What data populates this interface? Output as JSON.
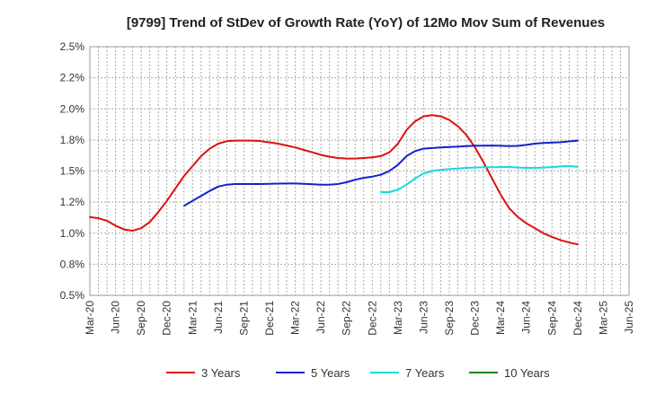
{
  "chart_data": {
    "type": "line",
    "title": "[9799]  Trend of StDev of Growth Rate (YoY) of 12Mo Mov Sum of Revenues",
    "xlabel": "",
    "ylabel": "",
    "grid": true,
    "ylim": [
      0.5,
      2.5
    ],
    "y_ticks": [
      0.5,
      0.75,
      1.0,
      1.25,
      1.5,
      1.75,
      2.0,
      2.25,
      2.5
    ],
    "y_tick_labels": [
      "0.5%",
      "0.8%",
      "1.0%",
      "1.2%",
      "1.5%",
      "1.8%",
      "2.0%",
      "2.2%",
      "2.5%"
    ],
    "x_tick_labels": [
      "Mar-20",
      "Jun-20",
      "Sep-20",
      "Dec-20",
      "Mar-21",
      "Jun-21",
      "Sep-21",
      "Dec-21",
      "Mar-22",
      "Jun-22",
      "Sep-22",
      "Dec-22",
      "Mar-23",
      "Jun-23",
      "Sep-23",
      "Dec-23",
      "Mar-24",
      "Jun-24",
      "Sep-24",
      "Dec-24",
      "Mar-25",
      "Jun-25"
    ],
    "legend_position": "bottom",
    "series": [
      {
        "name": "3 Years",
        "color": "#dd1111",
        "points": [
          [
            0,
            1.13
          ],
          [
            1,
            1.12
          ],
          [
            2,
            1.1
          ],
          [
            3,
            1.06
          ],
          [
            4,
            1.03
          ],
          [
            5,
            1.02
          ],
          [
            6,
            1.04
          ],
          [
            7,
            1.09
          ],
          [
            8,
            1.17
          ],
          [
            9,
            1.26
          ],
          [
            10,
            1.36
          ],
          [
            11,
            1.46
          ],
          [
            12,
            1.54
          ],
          [
            13,
            1.62
          ],
          [
            14,
            1.68
          ],
          [
            15,
            1.72
          ],
          [
            16,
            1.74
          ],
          [
            17,
            1.745
          ],
          [
            18,
            1.745
          ],
          [
            19,
            1.745
          ],
          [
            20,
            1.74
          ],
          [
            21,
            1.73
          ],
          [
            22,
            1.72
          ],
          [
            23,
            1.705
          ],
          [
            24,
            1.69
          ],
          [
            25,
            1.67
          ],
          [
            26,
            1.65
          ],
          [
            27,
            1.63
          ],
          [
            28,
            1.615
          ],
          [
            29,
            1.605
          ],
          [
            30,
            1.6
          ],
          [
            31,
            1.6
          ],
          [
            32,
            1.605
          ],
          [
            33,
            1.61
          ],
          [
            34,
            1.62
          ],
          [
            35,
            1.65
          ],
          [
            36,
            1.72
          ],
          [
            37,
            1.83
          ],
          [
            38,
            1.9
          ],
          [
            39,
            1.94
          ],
          [
            40,
            1.95
          ],
          [
            41,
            1.94
          ],
          [
            42,
            1.91
          ],
          [
            43,
            1.86
          ],
          [
            44,
            1.79
          ],
          [
            45,
            1.69
          ],
          [
            46,
            1.57
          ],
          [
            47,
            1.44
          ],
          [
            48,
            1.31
          ],
          [
            49,
            1.2
          ],
          [
            50,
            1.13
          ],
          [
            51,
            1.08
          ],
          [
            52,
            1.04
          ],
          [
            53,
            1.0
          ],
          [
            54,
            0.97
          ],
          [
            55,
            0.945
          ],
          [
            56,
            0.925
          ],
          [
            57,
            0.91
          ]
        ]
      },
      {
        "name": "5 Years",
        "color": "#1122cc",
        "points": [
          [
            11,
            1.22
          ],
          [
            12,
            1.26
          ],
          [
            13,
            1.3
          ],
          [
            14,
            1.34
          ],
          [
            15,
            1.375
          ],
          [
            16,
            1.39
          ],
          [
            17,
            1.395
          ],
          [
            18,
            1.395
          ],
          [
            19,
            1.395
          ],
          [
            20,
            1.395
          ],
          [
            21,
            1.397
          ],
          [
            22,
            1.399
          ],
          [
            23,
            1.4
          ],
          [
            24,
            1.4
          ],
          [
            25,
            1.397
          ],
          [
            26,
            1.393
          ],
          [
            27,
            1.39
          ],
          [
            28,
            1.39
          ],
          [
            29,
            1.395
          ],
          [
            30,
            1.41
          ],
          [
            31,
            1.43
          ],
          [
            32,
            1.445
          ],
          [
            33,
            1.455
          ],
          [
            34,
            1.47
          ],
          [
            35,
            1.5
          ],
          [
            36,
            1.55
          ],
          [
            37,
            1.62
          ],
          [
            38,
            1.66
          ],
          [
            39,
            1.68
          ],
          [
            40,
            1.685
          ],
          [
            41,
            1.69
          ],
          [
            42,
            1.693
          ],
          [
            43,
            1.696
          ],
          [
            44,
            1.7
          ],
          [
            45,
            1.703
          ],
          [
            46,
            1.704
          ],
          [
            47,
            1.705
          ],
          [
            48,
            1.703
          ],
          [
            49,
            1.701
          ],
          [
            50,
            1.702
          ],
          [
            51,
            1.71
          ],
          [
            52,
            1.72
          ],
          [
            53,
            1.725
          ],
          [
            54,
            1.728
          ],
          [
            55,
            1.732
          ],
          [
            56,
            1.738
          ],
          [
            57,
            1.745
          ]
        ]
      },
      {
        "name": "7 Years",
        "color": "#11dddd",
        "points": [
          [
            34,
            1.33
          ],
          [
            35,
            1.33
          ],
          [
            36,
            1.35
          ],
          [
            37,
            1.39
          ],
          [
            38,
            1.44
          ],
          [
            39,
            1.48
          ],
          [
            40,
            1.5
          ],
          [
            41,
            1.51
          ],
          [
            42,
            1.515
          ],
          [
            43,
            1.52
          ],
          [
            44,
            1.525
          ],
          [
            45,
            1.528
          ],
          [
            46,
            1.53
          ],
          [
            47,
            1.53
          ],
          [
            48,
            1.532
          ],
          [
            49,
            1.533
          ],
          [
            50,
            1.528
          ],
          [
            51,
            1.525
          ],
          [
            52,
            1.525
          ],
          [
            53,
            1.528
          ],
          [
            54,
            1.532
          ],
          [
            55,
            1.537
          ],
          [
            56,
            1.54
          ],
          [
            57,
            1.535
          ]
        ]
      },
      {
        "name": "10 Years",
        "color": "#118811",
        "points": []
      }
    ]
  }
}
